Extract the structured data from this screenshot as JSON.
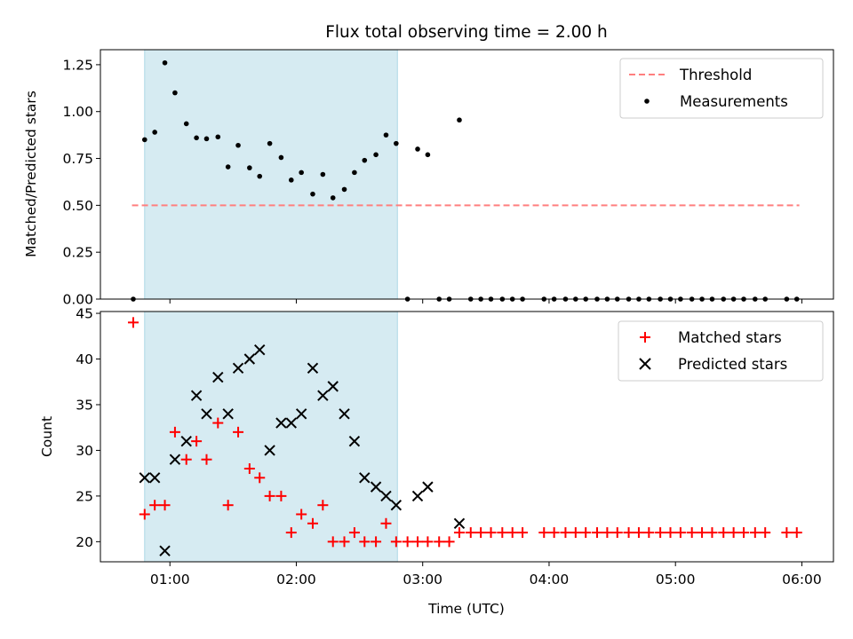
{
  "figure": {
    "title": "Flux total observing time = 2.00 h",
    "shade_range_hours": [
      0.8,
      2.8
    ]
  },
  "chart_data": [
    {
      "type": "scatter",
      "title": "Flux total observing time = 2.00 h",
      "xlabel": "",
      "ylabel": "Matched/Predicted stars",
      "x_unit": "hours UTC",
      "xlim": [
        0.45,
        6.25
      ],
      "ylim": [
        0,
        1.33
      ],
      "yticks": [
        0.0,
        0.25,
        0.5,
        0.75,
        1.0,
        1.25
      ],
      "ytick_labels": [
        "0.00",
        "0.25",
        "0.50",
        "0.75",
        "1.00",
        "1.25"
      ],
      "legend_position": "top-right",
      "grid": false,
      "threshold": {
        "name": "Threshold",
        "value": 0.5,
        "x_range": [
          0.7,
          5.98
        ],
        "color": "#ff7f7f",
        "style": "dashed"
      },
      "series": [
        {
          "name": "Measurements",
          "color": "#000000",
          "marker": "dot",
          "x": [
            0.71,
            0.8,
            0.88,
            0.96,
            1.04,
            1.13,
            1.21,
            1.29,
            1.38,
            1.46,
            1.54,
            1.63,
            1.71,
            1.79,
            1.88,
            1.96,
            2.04,
            2.13,
            2.21,
            2.29,
            2.38,
            2.46,
            2.54,
            2.63,
            2.71,
            2.79,
            2.88,
            2.96,
            3.04,
            3.13,
            3.21,
            3.29,
            3.38,
            3.46,
            3.54,
            3.63,
            3.71,
            3.79,
            3.96,
            4.04,
            4.13,
            4.21,
            4.29,
            4.38,
            4.46,
            4.54,
            4.63,
            4.71,
            4.79,
            4.88,
            4.96,
            5.04,
            5.13,
            5.21,
            5.29,
            5.38,
            5.46,
            5.54,
            5.63,
            5.71,
            5.88,
            5.96
          ],
          "y": [
            0.0,
            0.85,
            0.89,
            1.26,
            1.1,
            0.935,
            0.86,
            0.855,
            0.865,
            0.705,
            0.82,
            0.7,
            0.655,
            0.83,
            0.755,
            0.635,
            0.675,
            0.56,
            0.665,
            0.54,
            0.585,
            0.675,
            0.74,
            0.77,
            0.875,
            0.83,
            0.0,
            0.8,
            0.77,
            0.0,
            0.0,
            0.955,
            0.0,
            0.0,
            0.0,
            0.0,
            0.0,
            0.0,
            0.0,
            0.0,
            0.0,
            0.0,
            0.0,
            0.0,
            0.0,
            0.0,
            0.0,
            0.0,
            0.0,
            0.0,
            0.0,
            0.0,
            0.0,
            0.0,
            0.0,
            0.0,
            0.0,
            0.0,
            0.0,
            0.0,
            0.0,
            0.0
          ]
        }
      ]
    },
    {
      "type": "scatter",
      "title": "",
      "xlabel": "Time (UTC)",
      "ylabel": "Count",
      "x_unit": "hours UTC",
      "xlim": [
        0.45,
        6.25
      ],
      "ylim": [
        17.8,
        45.2
      ],
      "xticks": [
        1,
        2,
        3,
        4,
        5,
        6
      ],
      "xtick_labels": [
        "01:00",
        "02:00",
        "03:00",
        "04:00",
        "05:00",
        "06:00"
      ],
      "yticks": [
        20,
        25,
        30,
        35,
        40,
        45
      ],
      "ytick_labels": [
        "20",
        "25",
        "30",
        "35",
        "40",
        "45"
      ],
      "legend_position": "top-right",
      "grid": false,
      "series": [
        {
          "name": "Matched stars",
          "color": "#ff0000",
          "marker": "plus",
          "x": [
            0.71,
            0.8,
            0.88,
            0.96,
            1.04,
            1.13,
            1.21,
            1.29,
            1.38,
            1.46,
            1.54,
            1.63,
            1.71,
            1.79,
            1.88,
            1.96,
            2.04,
            2.13,
            2.21,
            2.29,
            2.38,
            2.46,
            2.54,
            2.63,
            2.71,
            2.79,
            2.88,
            2.96,
            3.04,
            3.13,
            3.21,
            3.29,
            3.38,
            3.46,
            3.54,
            3.63,
            3.71,
            3.79,
            3.96,
            4.04,
            4.13,
            4.21,
            4.29,
            4.38,
            4.46,
            4.54,
            4.63,
            4.71,
            4.79,
            4.88,
            4.96,
            5.04,
            5.13,
            5.21,
            5.29,
            5.38,
            5.46,
            5.54,
            5.63,
            5.71,
            5.88,
            5.96
          ],
          "y": [
            44,
            23,
            24,
            24,
            32,
            29,
            31,
            29,
            33,
            24,
            32,
            28,
            27,
            25,
            25,
            21,
            23,
            22,
            24,
            20,
            20,
            21,
            20,
            20,
            22,
            20,
            20,
            20,
            20,
            20,
            20,
            21,
            21,
            21,
            21,
            21,
            21,
            21,
            21,
            21,
            21,
            21,
            21,
            21,
            21,
            21,
            21,
            21,
            21,
            21,
            21,
            21,
            21,
            21,
            21,
            21,
            21,
            21,
            21,
            21,
            21,
            21
          ]
        },
        {
          "name": "Predicted stars",
          "color": "#000000",
          "marker": "cross",
          "x": [
            0.8,
            0.88,
            0.96,
            1.04,
            1.13,
            1.21,
            1.29,
            1.38,
            1.46,
            1.54,
            1.63,
            1.71,
            1.79,
            1.88,
            1.96,
            2.04,
            2.13,
            2.21,
            2.29,
            2.38,
            2.46,
            2.54,
            2.63,
            2.71,
            2.79,
            2.96,
            3.04,
            3.29
          ],
          "y": [
            27,
            27,
            19,
            29,
            31,
            36,
            34,
            38,
            34,
            39,
            40,
            41,
            30,
            33,
            33,
            34,
            39,
            36,
            37,
            34,
            31,
            27,
            26,
            25,
            24,
            25,
            26,
            22
          ]
        }
      ]
    }
  ]
}
